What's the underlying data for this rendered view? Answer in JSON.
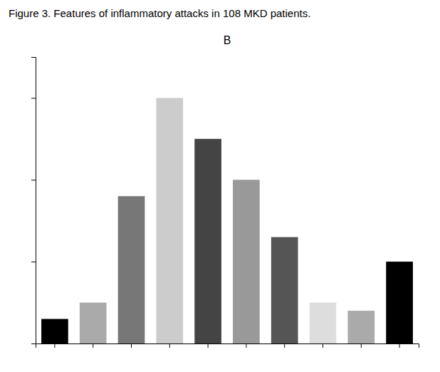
{
  "chart_data": {
    "type": "bar",
    "title": "Figure 3. Features of inflammatory attacks in 108 MKD patients.",
    "subtitle": "B",
    "categories": [
      null,
      null,
      null,
      null,
      null,
      null,
      null,
      null,
      null,
      null
    ],
    "values": [
      3,
      5,
      18,
      30,
      25,
      20,
      13,
      5,
      4,
      10
    ],
    "colors": [
      "#000000",
      "#aaaaaa",
      "#777777",
      "#cccccc",
      "#444444",
      "#999999",
      "#555555",
      "#dddddd",
      "#aaaaaa",
      "#000000"
    ],
    "ylim": [
      0,
      35
    ],
    "yticks": [
      0,
      10,
      20,
      30
    ],
    "tick_labels": false,
    "grid": false
  }
}
